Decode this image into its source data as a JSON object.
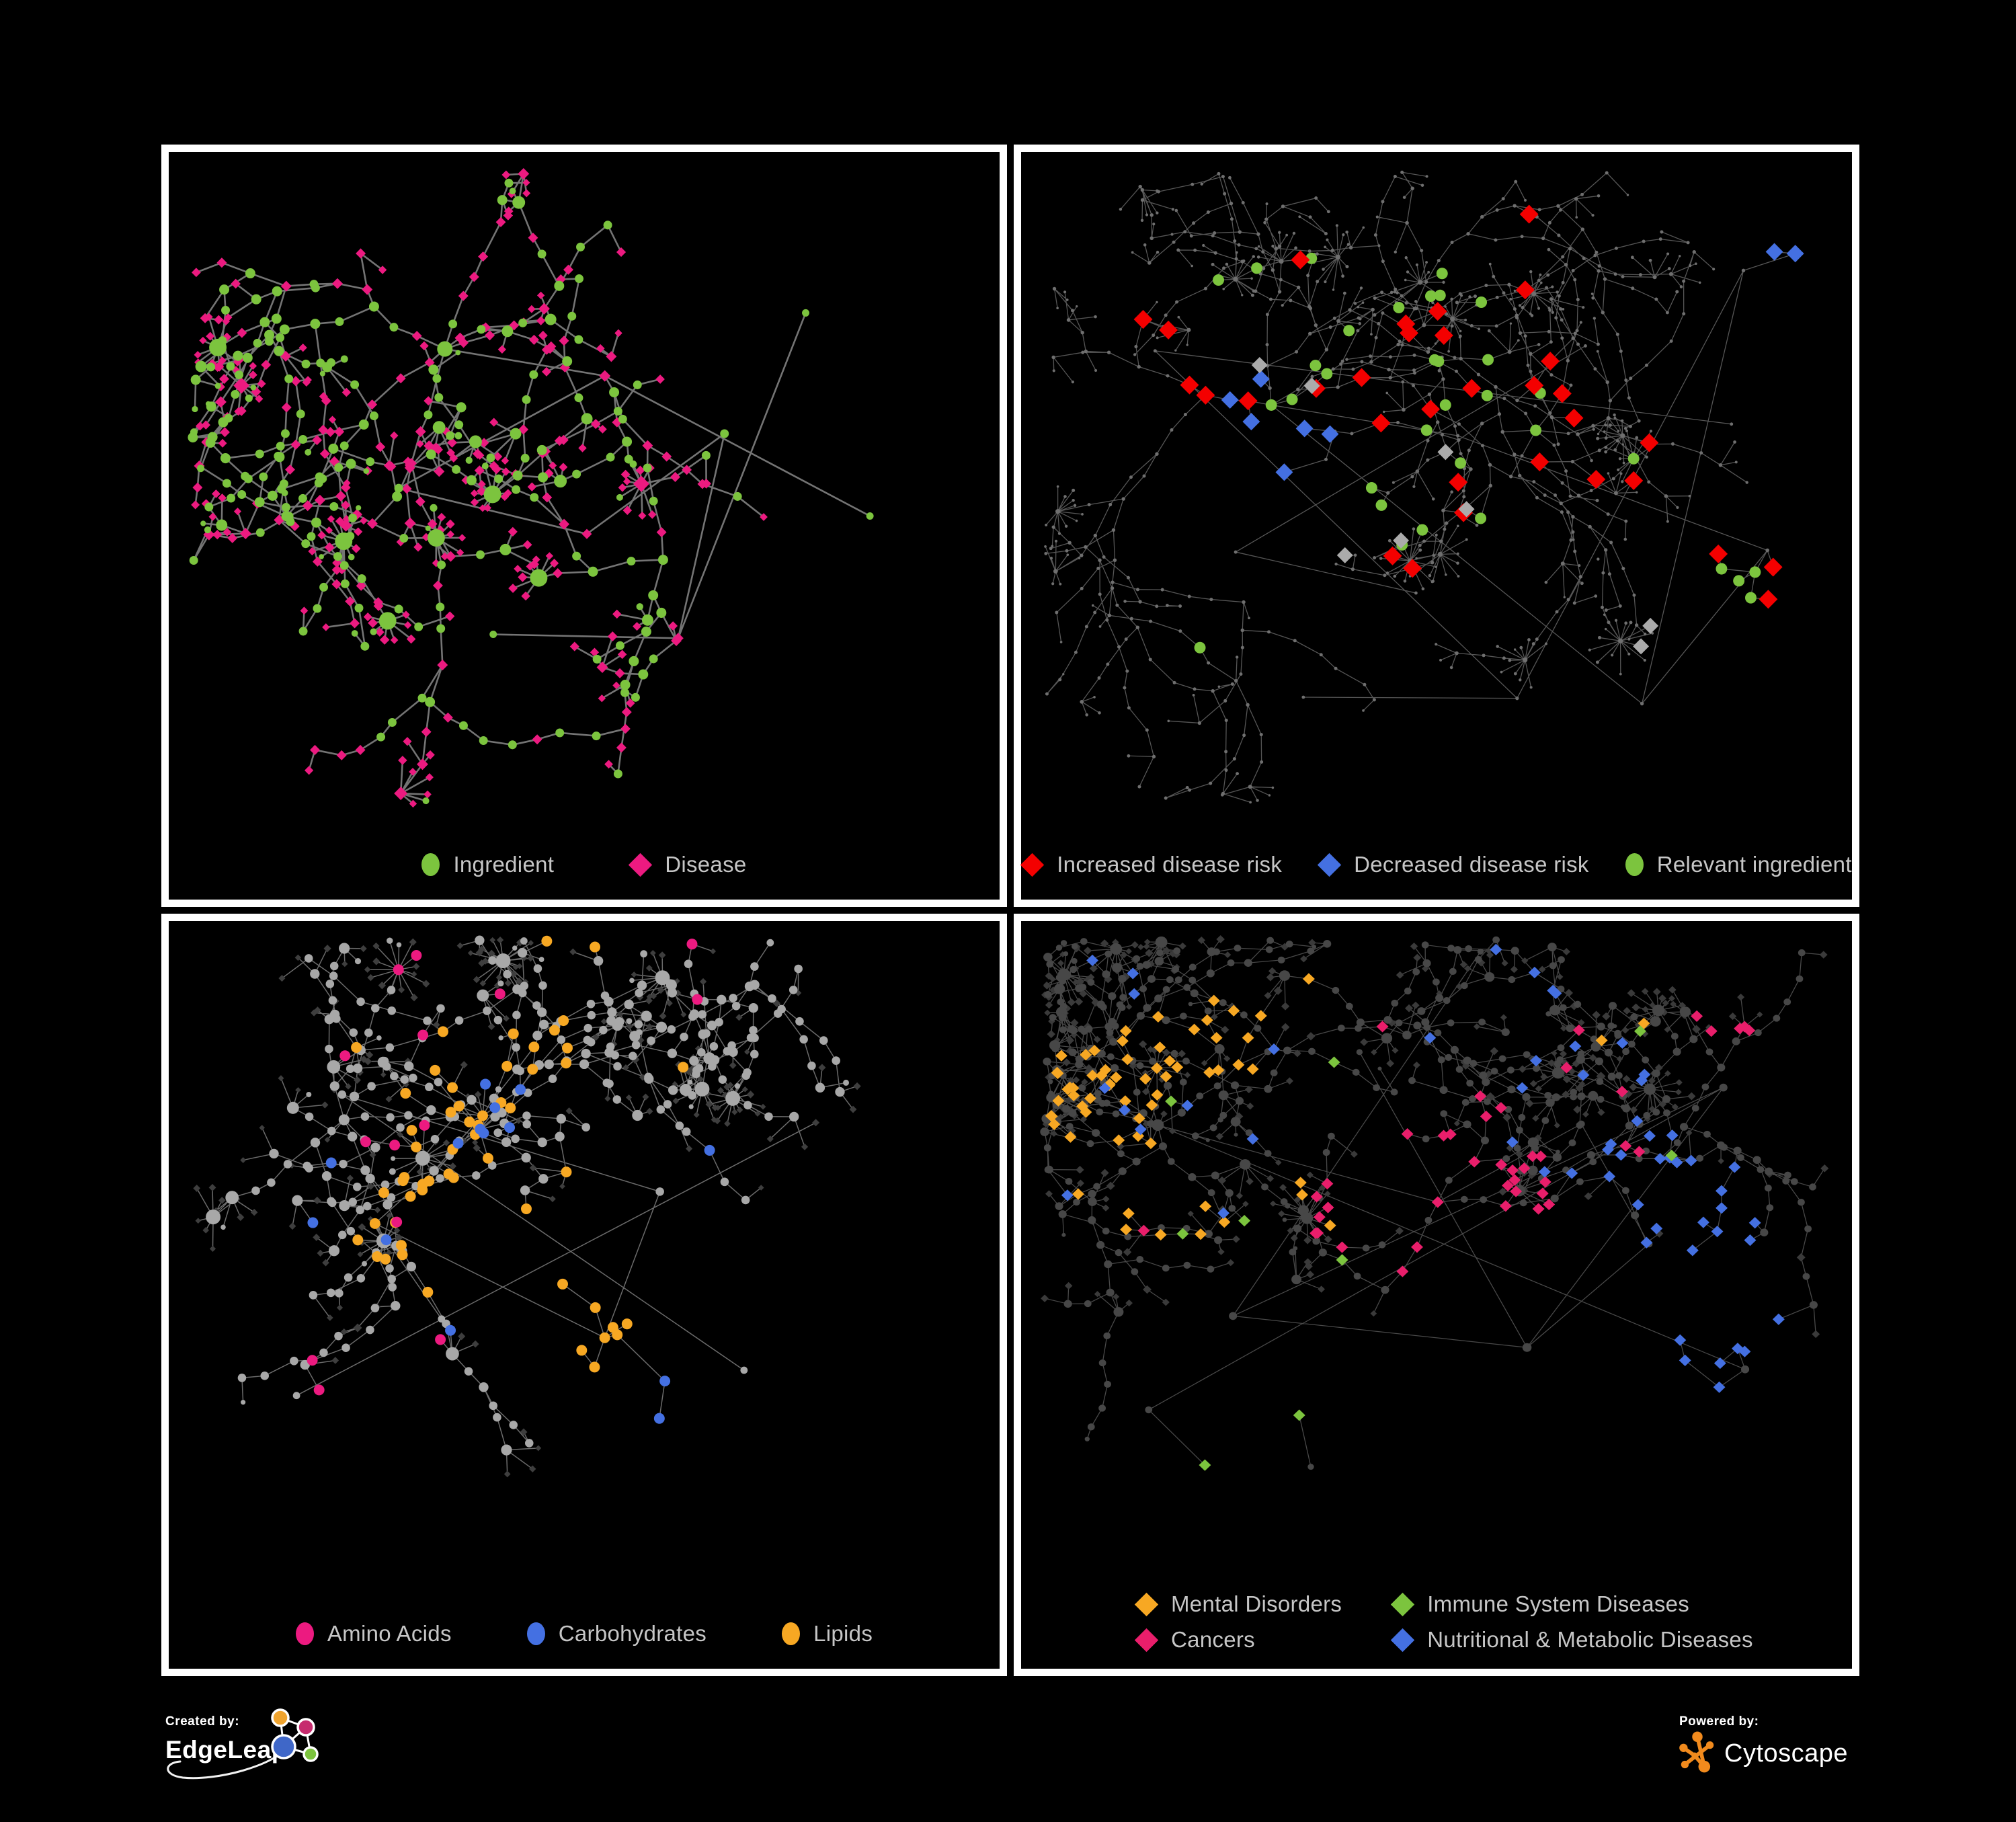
{
  "figure": {
    "background": "#000000",
    "panel_border_color": "#ffffff",
    "legend_text_color": "#c6c6c6"
  },
  "panels": [
    {
      "id": "ingredient-disease",
      "position": "top-left",
      "legend": [
        {
          "label": "Ingredient",
          "marker": "circle",
          "color": "#7cc43e"
        },
        {
          "label": "Disease",
          "marker": "diamond",
          "color": "#ec1a80"
        }
      ],
      "network": {
        "seed": 1337,
        "maxNodes": 520,
        "clusters": [
          [
            0.34,
            0.3,
            6
          ],
          [
            0.52,
            0.34,
            6
          ],
          [
            0.28,
            0.5,
            5
          ],
          [
            0.5,
            0.55,
            6
          ],
          [
            0.68,
            0.42,
            5
          ],
          [
            0.4,
            0.7,
            5
          ],
          [
            0.62,
            0.72,
            4
          ],
          [
            0.76,
            0.24,
            4
          ],
          [
            0.18,
            0.36,
            3
          ],
          [
            0.85,
            0.55,
            3
          ]
        ],
        "step": [
          26,
          60
        ],
        "len": [
          4,
          9
        ],
        "branchP": 0.35,
        "hubP": 0.1,
        "fan": [
          7,
          14
        ],
        "fanSmall": 5,
        "rootLinkP": 0.65,
        "edge": {
          "color": "#7a7a7a",
          "width": 2.6,
          "opacity": 0.95
        },
        "base": {
          "circleColor": "#7cc43e",
          "diamondColor": "#ec1a80",
          "r0": 4.5,
          "rDeg": 1.0,
          "rMax": 13,
          "leafR": 4.5,
          "dSize": 6.5,
          "leafDiamondP": 0.85,
          "internalCircleP": 0.58
        },
        "highlights": []
      }
    },
    {
      "id": "disease-risk",
      "position": "top-right",
      "legend": [
        {
          "label": "Increased disease risk",
          "marker": "diamond",
          "color": "#f40000"
        },
        {
          "label": "Decreased disease risk",
          "marker": "diamond",
          "color": "#4470e2"
        },
        {
          "label": "Relevant ingredient",
          "marker": "circle",
          "color": "#7cc43e"
        }
      ],
      "network": {
        "seed": 4242,
        "maxNodes": 820,
        "clusters": [
          [
            0.3,
            0.38,
            6
          ],
          [
            0.53,
            0.43,
            7
          ],
          [
            0.45,
            0.22,
            5
          ],
          [
            0.68,
            0.3,
            5
          ],
          [
            0.25,
            0.6,
            4
          ],
          [
            0.48,
            0.66,
            5
          ],
          [
            0.7,
            0.6,
            4
          ],
          [
            0.85,
            0.4,
            4
          ],
          [
            0.15,
            0.3,
            4
          ],
          [
            0.6,
            0.8,
            4
          ],
          [
            0.88,
            0.18,
            3
          ],
          [
            0.35,
            0.8,
            3
          ],
          [
            0.75,
            0.8,
            3
          ],
          [
            0.9,
            0.6,
            3
          ]
        ],
        "step": [
          24,
          52
        ],
        "len": [
          5,
          11
        ],
        "branchP": 0.4,
        "hubP": 0.07,
        "fan": [
          8,
          16
        ],
        "fanSmall": 5,
        "rootLinkP": 0.6,
        "edge": {
          "color": "#5f5f5f",
          "width": 1.3,
          "opacity": 0.9
        },
        "base": {
          "circleColor": "#6f6f6f",
          "diamondColor": "#6f6f6f",
          "r0": 2.2,
          "rDeg": 0.15,
          "rMax": 3.6,
          "leafR": 2.0,
          "dSize": 2.2,
          "leafDiamondP": 0,
          "internalCircleP": 1
        },
        "highlights": [
          {
            "shape": "circle",
            "color": "#7cc43e",
            "size": 8.5,
            "zones": [
              [
                0.27,
                0.29,
                0.1,
                5
              ],
              [
                0.5,
                0.4,
                0.16,
                16
              ],
              [
                0.88,
                0.63,
                0.05,
                4
              ],
              [
                0.45,
                0.55,
                0.35,
                8
              ]
            ]
          },
          {
            "shape": "diamond",
            "color": "#f40000",
            "size": 14,
            "zones": [
              [
                0.53,
                0.43,
                0.17,
                16
              ],
              [
                0.28,
                0.37,
                0.09,
                4
              ],
              [
                0.7,
                0.43,
                0.1,
                4
              ],
              [
                0.86,
                0.67,
                0.07,
                3
              ],
              [
                0.6,
                0.1,
                0.06,
                1
              ],
              [
                0.5,
                0.45,
                0.4,
                4
              ]
            ]
          },
          {
            "shape": "diamond",
            "color": "#4470e2",
            "size": 13,
            "zones": [
              [
                0.3,
                0.41,
                0.08,
                6
              ],
              [
                0.94,
                0.16,
                0.04,
                2
              ]
            ]
          },
          {
            "shape": "diamond",
            "color": "#ababab",
            "size": 12,
            "zones": [
              [
                0.285,
                0.315,
                0.07,
                2
              ],
              [
                0.52,
                0.42,
                0.14,
                3
              ],
              [
                0.42,
                0.6,
                0.05,
                1
              ],
              [
                0.79,
                0.7,
                0.06,
                2
              ]
            ]
          }
        ]
      }
    },
    {
      "id": "nutrient-classes",
      "position": "bottom-left",
      "legend": [
        {
          "label": "Amino Acids",
          "marker": "circle",
          "color": "#ec1a80"
        },
        {
          "label": "Carbohydrates",
          "marker": "circle",
          "color": "#4470e2"
        },
        {
          "label": "Lipids",
          "marker": "circle",
          "color": "#f7a823"
        }
      ],
      "network": {
        "seed": 90210,
        "maxNodes": 560,
        "clusters": [
          [
            0.38,
            0.3,
            6
          ],
          [
            0.25,
            0.45,
            6
          ],
          [
            0.33,
            0.6,
            5
          ],
          [
            0.52,
            0.6,
            5
          ],
          [
            0.6,
            0.4,
            4
          ],
          [
            0.2,
            0.25,
            4
          ],
          [
            0.7,
            0.65,
            4
          ],
          [
            0.55,
            0.15,
            4
          ],
          [
            0.15,
            0.7,
            3
          ],
          [
            0.78,
            0.3,
            3
          ]
        ],
        "step": [
          26,
          56
        ],
        "len": [
          4,
          9
        ],
        "branchP": 0.38,
        "hubP": 0.1,
        "fan": [
          9,
          20
        ],
        "fanSmall": 5,
        "rootLinkP": 0.65,
        "edge": {
          "color": "#8f8f8f",
          "width": 1.5,
          "opacity": 0.75
        },
        "base": {
          "circleColor": "#a8a8a8",
          "diamondColor": "#3e3e3e",
          "r0": 4.5,
          "rDeg": 0.9,
          "rMax": 11,
          "leafR": 4,
          "dSize": 5,
          "leafDiamondP": 0.9,
          "internalCircleP": 0.97
        },
        "highlights": [
          {
            "shape": "circle",
            "color": "#f7a823",
            "size": 8,
            "zones": [
              [
                0.4,
                0.29,
                0.13,
                26
              ],
              [
                0.34,
                0.47,
                0.1,
                12
              ],
              [
                0.54,
                0.6,
                0.09,
                8
              ],
              [
                0.5,
                0.5,
                0.45,
                9
              ]
            ]
          },
          {
            "shape": "circle",
            "color": "#4470e2",
            "size": 8,
            "zones": [
              [
                0.43,
                0.31,
                0.1,
                7
              ],
              [
                0.19,
                0.4,
                0.05,
                2
              ],
              [
                0.63,
                0.7,
                0.05,
                2
              ],
              [
                0.5,
                0.45,
                0.4,
                3
              ]
            ]
          },
          {
            "shape": "circle",
            "color": "#ec1a80",
            "size": 8,
            "zones": [
              [
                0.5,
                0.5,
                0.47,
                14
              ]
            ]
          }
        ]
      }
    },
    {
      "id": "disease-classes",
      "position": "bottom-right",
      "legend": [
        {
          "label": "Mental Disorders",
          "marker": "diamond",
          "color": "#f7a823"
        },
        {
          "label": "Immune System Diseases",
          "marker": "diamond",
          "color": "#7cc43e"
        },
        {
          "label": "Cancers",
          "marker": "diamond",
          "color": "#e91e6b"
        },
        {
          "label": "Nutritional & Metabolic Diseases",
          "marker": "diamond",
          "color": "#4470e2"
        }
      ],
      "network": {
        "seed": 777,
        "maxNodes": 860,
        "clusters": [
          [
            0.16,
            0.33,
            7
          ],
          [
            0.5,
            0.44,
            7
          ],
          [
            0.68,
            0.3,
            5
          ],
          [
            0.76,
            0.5,
            5
          ],
          [
            0.4,
            0.2,
            5
          ],
          [
            0.6,
            0.65,
            5
          ],
          [
            0.25,
            0.6,
            4
          ],
          [
            0.85,
            0.25,
            4
          ],
          [
            0.55,
            0.06,
            3
          ],
          [
            0.15,
            0.75,
            3
          ],
          [
            0.88,
            0.7,
            3
          ],
          [
            0.35,
            0.85,
            3
          ]
        ],
        "step": [
          24,
          50
        ],
        "len": [
          5,
          10
        ],
        "branchP": 0.4,
        "hubP": 0.08,
        "fan": [
          9,
          18
        ],
        "fanSmall": 5,
        "rootLinkP": 0.6,
        "edge": {
          "color": "#565656",
          "width": 1.3,
          "opacity": 0.85
        },
        "base": {
          "circleColor": "#474747",
          "diamondColor": "#3a3a3a",
          "r0": 4,
          "rDeg": 0.7,
          "rMax": 9,
          "leafR": 3.5,
          "dSize": 5.5,
          "leafDiamondP": 0.93,
          "internalCircleP": 0.95
        },
        "highlights": [
          {
            "shape": "diamond",
            "color": "#f7a823",
            "size": 9,
            "zones": [
              [
                0.155,
                0.33,
                0.15,
                48
              ],
              [
                0.3,
                0.18,
                0.09,
                9
              ],
              [
                0.5,
                0.55,
                0.45,
                7
              ]
            ]
          },
          {
            "shape": "diamond",
            "color": "#e91e6b",
            "size": 9,
            "zones": [
              [
                0.5,
                0.44,
                0.15,
                30
              ],
              [
                0.87,
                0.17,
                0.06,
                5
              ],
              [
                0.5,
                0.55,
                0.45,
                7
              ]
            ]
          },
          {
            "shape": "diamond",
            "color": "#4470e2",
            "size": 9,
            "zones": [
              [
                0.76,
                0.48,
                0.13,
                22
              ],
              [
                0.67,
                0.28,
                0.1,
                9
              ],
              [
                0.84,
                0.68,
                0.09,
                7
              ],
              [
                0.55,
                0.06,
                0.12,
                5
              ],
              [
                0.12,
                0.1,
                0.1,
                3
              ],
              [
                0.5,
                0.4,
                0.45,
                9
              ]
            ]
          },
          {
            "shape": "diamond",
            "color": "#7cc43e",
            "size": 9,
            "zones": [
              [
                0.5,
                0.45,
                0.35,
                7
              ],
              [
                0.25,
                0.75,
                0.1,
                2
              ]
            ]
          }
        ]
      }
    }
  ],
  "footer": {
    "created_by": {
      "label": "Created by:",
      "brand": "EdgeLeap",
      "logo_colors": {
        "orange": "#f0a42e",
        "magenta": "#c62b6e",
        "blue": "#3f67c8",
        "green": "#7cc43e"
      }
    },
    "powered_by": {
      "label": "Powered by:",
      "brand": "Cytoscape",
      "logo_color": "#f18a1d"
    }
  }
}
